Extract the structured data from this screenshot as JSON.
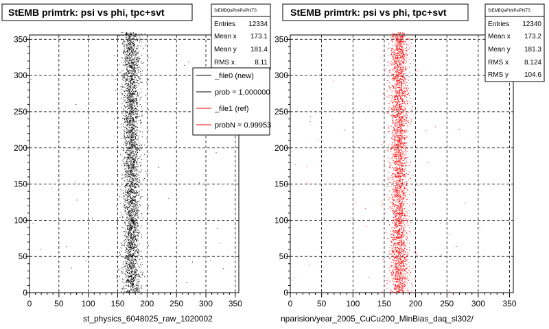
{
  "chart_data": [
    {
      "type": "scatter",
      "title": "StEMB primtrk: psi vs phi, tpc+svt",
      "xlabel": "st_physics_6048025_raw_1020002",
      "ylabel": "",
      "xlim": [
        0,
        360
      ],
      "ylim": [
        0,
        360
      ],
      "grid": true,
      "color": "#000000",
      "band": {
        "x_center": 173,
        "x_sigma": 8.1
      },
      "stats": {
        "header": "StEMBQaPtrkPsiPhiTS",
        "rows": [
          {
            "label": "Entries",
            "value": "12334"
          },
          {
            "label": "Mean x",
            "value": "173.1"
          },
          {
            "label": "Mean y",
            "value": "181.4"
          },
          {
            "label": "RMS x",
            "value": "8.11"
          }
        ]
      },
      "legend": {
        "placement": "top-right",
        "entries": [
          {
            "label": "_file0 (new)",
            "color": "#000000"
          },
          {
            "label": "prob = 1.000000",
            "color": "#000000"
          },
          {
            "label": "_file1 (ref)",
            "color": "#ff0000"
          },
          {
            "label": "probN = 0.99953",
            "color": "#ff0000"
          }
        ]
      }
    },
    {
      "type": "scatter",
      "title": "StEMB primtrk: psi vs phi, tpc+svt",
      "xlabel": "nparision/year_2005_CuCu200_MinBias_daq_sl302/",
      "ylabel": "",
      "xlim": [
        0,
        360
      ],
      "ylim": [
        0,
        360
      ],
      "grid": true,
      "color": "#ff0000",
      "band": {
        "x_center": 173.2,
        "x_sigma": 8.124
      },
      "stats": {
        "header": "StEMBQaPtrkPsiPhiTS",
        "rows": [
          {
            "label": "Entries",
            "value": "12340"
          },
          {
            "label": "Mean x",
            "value": "173.2"
          },
          {
            "label": "Mean y",
            "value": "181.3"
          },
          {
            "label": "RMS x",
            "value": "8.124"
          },
          {
            "label": "RMS y",
            "value": "104.6"
          }
        ]
      }
    }
  ],
  "ticks": {
    "x": [
      "0",
      "50",
      "100",
      "150",
      "200",
      "250",
      "300",
      "350"
    ],
    "y": [
      "0",
      "50",
      "100",
      "150",
      "200",
      "250",
      "300",
      "350"
    ]
  }
}
